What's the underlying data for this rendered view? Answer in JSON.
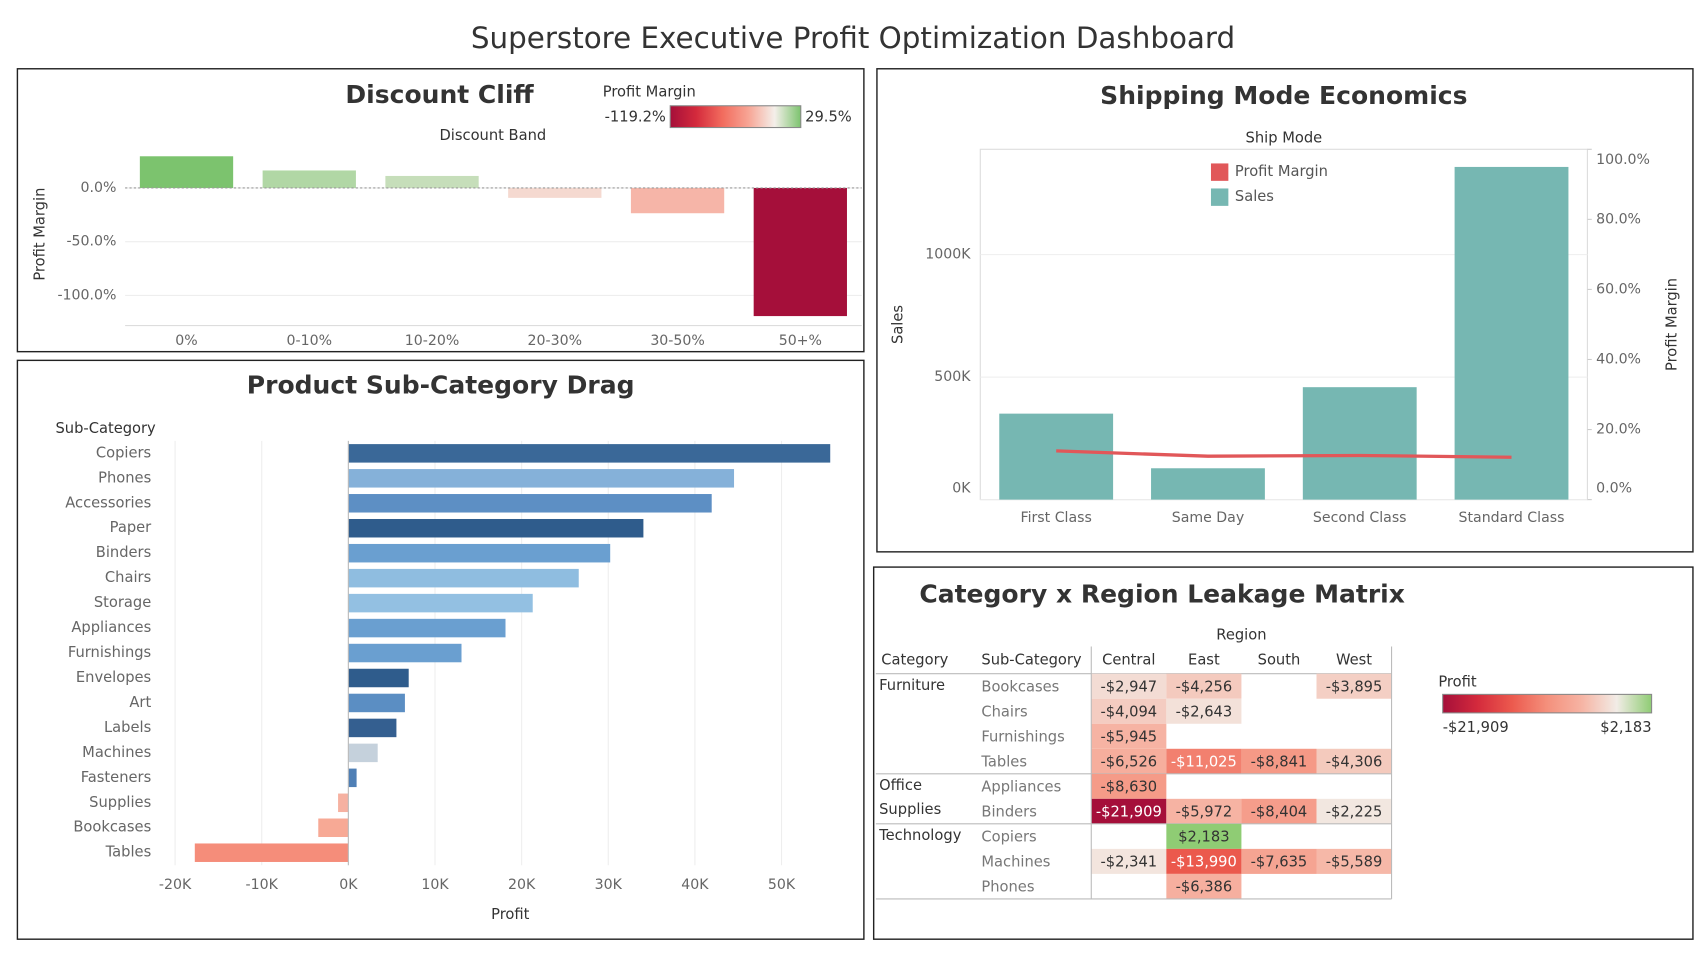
{
  "title": "Superstore Executive Profit Optimization Dashboard",
  "chart_data": [
    {
      "type": "bar",
      "title": "Discount Cliff",
      "x_label": "Discount Band",
      "y_label": "Profit Margin",
      "categories": [
        "0%",
        "0-10%",
        "10-20%",
        "20-30%",
        "30-50%",
        "50+%"
      ],
      "values": [
        29.5,
        16.3,
        11.2,
        -9.2,
        -23.5,
        -119.2
      ],
      "ylim": [
        -128,
        36
      ],
      "yticks": [
        {
          "value": 0,
          "label": "0.0%"
        },
        {
          "value": -50,
          "label": "-50.0%"
        },
        {
          "value": -100,
          "label": "-100.0%"
        }
      ],
      "grid": true,
      "color_scale": {
        "title": "Profit Margin",
        "min": {
          "value": -119.2,
          "label": "-119.2%"
        },
        "max": {
          "value": 29.5,
          "label": "29.5%"
        },
        "colors": [
          "#a50f3a",
          "#d42a3c",
          "#f26c5e",
          "#f7a595",
          "#f4efea",
          "#7cc36e"
        ]
      }
    },
    {
      "type": "bar_line",
      "title": "Shipping Mode Economics",
      "x_label": "Ship Mode",
      "y_label": "Sales",
      "y2_label": "Profit Margin",
      "categories": [
        "First Class",
        "Same Day",
        "Second Class",
        "Standard Class"
      ],
      "series": [
        {
          "name": "Profit Margin",
          "color": "#e15759",
          "type": "line",
          "axis": "y2",
          "values": [
            13.9,
            12.4,
            12.6,
            12.1
          ]
        },
        {
          "name": "Sales",
          "color": "#76b7b2",
          "type": "bar",
          "values": [
            351000,
            128000,
            459000,
            1358000
          ]
        }
      ],
      "ylim": [
        0,
        1430000
      ],
      "yticks": [
        {
          "value": 0,
          "label": "0K"
        },
        {
          "value": 500000,
          "label": "500K"
        },
        {
          "value": 1000000,
          "label": "1000K"
        }
      ],
      "y2lim": [
        0,
        100
      ],
      "y2ticks": [
        {
          "value": 0,
          "label": "0.0%"
        },
        {
          "value": 20,
          "label": "20.0%"
        },
        {
          "value": 40,
          "label": "40.0%"
        },
        {
          "value": 60,
          "label": "60.0%"
        },
        {
          "value": 80,
          "label": "80.0%"
        },
        {
          "value": 100,
          "label": "100.0%"
        }
      ],
      "grid": true,
      "legend": "top"
    },
    {
      "type": "hbar",
      "title": "Product Sub-Category Drag",
      "x_label": "Profit",
      "y_label": "Sub-Category",
      "categories": [
        "Copiers",
        "Phones",
        "Accessories",
        "Paper",
        "Binders",
        "Chairs",
        "Storage",
        "Appliances",
        "Furnishings",
        "Envelopes",
        "Art",
        "Labels",
        "Machines",
        "Fasteners",
        "Supplies",
        "Bookcases",
        "Tables"
      ],
      "values": [
        55618,
        44516,
        41937,
        34054,
        30222,
        26590,
        21279,
        18138,
        13059,
        6964,
        6528,
        5546,
        3385,
        950,
        -1189,
        -3473,
        -17725
      ],
      "colors": [
        "#3a6898",
        "#85b1d9",
        "#5d8fc4",
        "#2f5c8c",
        "#6a9fd0",
        "#8fbde0",
        "#93c0e2",
        "#6a9fd0",
        "#6a9fd0",
        "#2f5c8c",
        "#5b8ec3",
        "#345f90",
        "#c5d1dc",
        "#4f7fb5",
        "#f6b1a1",
        "#f7a995",
        "#f58d7a"
      ],
      "xlim": [
        -22000,
        59000
      ],
      "xticks": [
        {
          "value": -20000,
          "label": "-20K"
        },
        {
          "value": -10000,
          "label": "-10K"
        },
        {
          "value": 0,
          "label": "0K"
        },
        {
          "value": 10000,
          "label": "10K"
        },
        {
          "value": 20000,
          "label": "20K"
        },
        {
          "value": 30000,
          "label": "30K"
        },
        {
          "value": 40000,
          "label": "40K"
        },
        {
          "value": 50000,
          "label": "50K"
        }
      ],
      "grid": true
    },
    {
      "type": "heatmap",
      "title": "Category x Region Leakage Matrix",
      "column_title": "Region",
      "row_header": [
        "Category",
        "Sub-Category"
      ],
      "columns": [
        "Central",
        "East",
        "South",
        "West"
      ],
      "groups": [
        {
          "category": "Furniture",
          "subcategories": [
            "Bookcases",
            "Chairs",
            "Furnishings",
            "Tables"
          ],
          "values": [
            [
              -2947,
              -4256,
              null,
              -3895
            ],
            [
              -4094,
              -2643,
              null,
              null
            ],
            [
              -5945,
              null,
              null,
              null
            ],
            [
              -6526,
              -11025,
              -8841,
              -4306
            ]
          ],
          "value_labels": [
            [
              "-$2,947",
              "-$4,256",
              null,
              "-$3,895"
            ],
            [
              "-$4,094",
              "-$2,643",
              null,
              null
            ],
            [
              "-$5,945",
              null,
              null,
              null
            ],
            [
              "-$6,526",
              "-$11,025",
              "-$8,841",
              "-$4,306"
            ]
          ]
        },
        {
          "category": "Office Supplies",
          "subcategories": [
            "Appliances",
            "Binders"
          ],
          "values": [
            [
              -8630,
              null,
              null,
              null
            ],
            [
              -21909,
              -5972,
              -8404,
              -2225
            ]
          ],
          "value_labels": [
            [
              "-$8,630",
              null,
              null,
              null
            ],
            [
              "-$21,909",
              "-$5,972",
              "-$8,404",
              "-$2,225"
            ]
          ]
        },
        {
          "category": "Technology",
          "subcategories": [
            "Copiers",
            "Machines",
            "Phones"
          ],
          "values": [
            [
              null,
              2183,
              null,
              null
            ],
            [
              -2341,
              -13990,
              -7635,
              -5589
            ],
            [
              null,
              -6386,
              null,
              null
            ]
          ],
          "value_labels": [
            [
              null,
              "$2,183",
              null,
              null
            ],
            [
              "-$2,341",
              "-$13,990",
              "-$7,635",
              "-$5,589"
            ],
            [
              null,
              "-$6,386",
              null,
              null
            ]
          ]
        }
      ],
      "color_scale": {
        "title": "Profit",
        "min": {
          "value": -21909,
          "label": "-$21,909"
        },
        "max": {
          "value": 2183,
          "label": "$2,183"
        },
        "colors": [
          "#a50f3a",
          "#d42a3c",
          "#ec5a4e",
          "#f4907c",
          "#f6b4a4",
          "#f2ece6",
          "#8fcc74"
        ]
      }
    }
  ]
}
